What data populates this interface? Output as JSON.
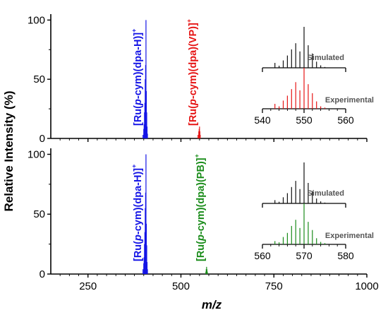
{
  "chart_data": {
    "type": "line",
    "ylabel": "Relative Intensity (%)",
    "xlabel": "m/z",
    "xlim": [
      150,
      1000
    ],
    "x_ticks": [
      250,
      500,
      750,
      1000
    ],
    "grid": false,
    "panels": [
      {
        "ylim": [
          0,
          105
        ],
        "y_ticks": [
          0,
          50,
          100
        ],
        "peaks": [
          {
            "x": 398,
            "y": 3,
            "color": "#1515e6"
          },
          {
            "x": 400,
            "y": 8,
            "color": "#1515e6"
          },
          {
            "x": 401,
            "y": 12,
            "color": "#1515e6"
          },
          {
            "x": 402,
            "y": 22,
            "color": "#1515e6"
          },
          {
            "x": 403,
            "y": 30,
            "color": "#1515e6"
          },
          {
            "x": 404,
            "y": 50,
            "color": "#1515e6"
          },
          {
            "x": 405,
            "y": 62,
            "color": "#1515e6"
          },
          {
            "x": 406,
            "y": 100,
            "color": "#1515e6"
          },
          {
            "x": 407,
            "y": 40,
            "color": "#1515e6"
          },
          {
            "x": 408,
            "y": 22,
            "color": "#1515e6"
          },
          {
            "x": 409,
            "y": 10,
            "color": "#1515e6"
          },
          {
            "x": 410,
            "y": 4,
            "color": "#1515e6"
          },
          {
            "x": 546,
            "y": 3,
            "color": "#e61515"
          },
          {
            "x": 548,
            "y": 6,
            "color": "#e61515"
          },
          {
            "x": 549,
            "y": 8,
            "color": "#e61515"
          },
          {
            "x": 550,
            "y": 10,
            "color": "#e61515"
          },
          {
            "x": 551,
            "y": 6,
            "color": "#e61515"
          },
          {
            "x": 552,
            "y": 3,
            "color": "#e61515"
          }
        ],
        "annotations": [
          {
            "main": "[Ru(",
            "ital": "p",
            "rest": "-cym)(dpa-H)]",
            "sup": "+",
            "color": "#1515e6",
            "x": 399
          },
          {
            "main": "[Ru(",
            "ital": "p",
            "rest": "-cym)(dpa)(VP)]",
            "sup": "+",
            "color": "#e61515",
            "x": 547
          }
        ],
        "inset": {
          "xlim": [
            540,
            560
          ],
          "x_ticks": [
            540,
            550,
            560
          ],
          "simulated_label": "Simulated",
          "experimental_label": "Experimental",
          "simulated": [
            [
              543,
              12
            ],
            [
              544,
              5
            ],
            [
              545,
              18
            ],
            [
              546,
              30
            ],
            [
              547,
              45
            ],
            [
              548,
              60
            ],
            [
              549,
              40
            ],
            [
              550,
              100
            ],
            [
              551,
              55
            ],
            [
              552,
              35
            ],
            [
              553,
              15
            ],
            [
              554,
              6
            ],
            [
              555,
              2
            ]
          ],
          "experimental": [
            [
              543,
              12
            ],
            [
              544,
              6
            ],
            [
              545,
              20
            ],
            [
              546,
              32
            ],
            [
              547,
              48
            ],
            [
              548,
              65
            ],
            [
              549,
              45
            ],
            [
              550,
              100
            ],
            [
              551,
              60
            ],
            [
              552,
              38
            ],
            [
              553,
              18
            ],
            [
              554,
              6
            ],
            [
              555,
              3
            ]
          ],
          "simulated_color": "#111111",
          "experimental_color": "#e61515"
        }
      },
      {
        "ylim": [
          0,
          105
        ],
        "y_ticks": [
          0,
          50,
          100
        ],
        "peaks": [
          {
            "x": 398,
            "y": 4,
            "color": "#1515e6"
          },
          {
            "x": 400,
            "y": 9,
            "color": "#1515e6"
          },
          {
            "x": 401,
            "y": 14,
            "color": "#1515e6"
          },
          {
            "x": 402,
            "y": 25,
            "color": "#1515e6"
          },
          {
            "x": 403,
            "y": 35,
            "color": "#1515e6"
          },
          {
            "x": 404,
            "y": 55,
            "color": "#1515e6"
          },
          {
            "x": 405,
            "y": 68,
            "color": "#1515e6"
          },
          {
            "x": 406,
            "y": 100,
            "color": "#1515e6"
          },
          {
            "x": 407,
            "y": 42,
            "color": "#1515e6"
          },
          {
            "x": 408,
            "y": 24,
            "color": "#1515e6"
          },
          {
            "x": 409,
            "y": 10,
            "color": "#1515e6"
          },
          {
            "x": 410,
            "y": 4,
            "color": "#1515e6"
          },
          {
            "x": 567,
            "y": 2,
            "color": "#1a8c1a"
          },
          {
            "x": 568,
            "y": 4,
            "color": "#1a8c1a"
          },
          {
            "x": 569,
            "y": 6,
            "color": "#1a8c1a"
          },
          {
            "x": 570,
            "y": 4,
            "color": "#1a8c1a"
          },
          {
            "x": 571,
            "y": 2,
            "color": "#1a8c1a"
          }
        ],
        "annotations": [
          {
            "main": "[Ru(",
            "ital": "p",
            "rest": "-cym)(dpa-H)]",
            "sup": "+",
            "color": "#1515e6",
            "x": 399
          },
          {
            "main": "[Ru(",
            "ital": "p",
            "rest": "-cym)(dpa)(PB)]",
            "sup": "+",
            "color": "#1a8c1a",
            "x": 567
          }
        ],
        "inset": {
          "xlim": [
            560,
            580
          ],
          "x_ticks": [
            560,
            570,
            580
          ],
          "simulated_label": "Simulated",
          "experimental_label": "Experimental",
          "simulated": [
            [
              563,
              8
            ],
            [
              564,
              4
            ],
            [
              565,
              15
            ],
            [
              566,
              25
            ],
            [
              567,
              40
            ],
            [
              568,
              55
            ],
            [
              569,
              35
            ],
            [
              570,
              100
            ],
            [
              571,
              50
            ],
            [
              572,
              30
            ],
            [
              573,
              12
            ],
            [
              574,
              5
            ],
            [
              575,
              2
            ]
          ],
          "experimental": [
            [
              563,
              8
            ],
            [
              564,
              5
            ],
            [
              565,
              18
            ],
            [
              566,
              28
            ],
            [
              567,
              45
            ],
            [
              568,
              60
            ],
            [
              569,
              40
            ],
            [
              570,
              100
            ],
            [
              571,
              55
            ],
            [
              572,
              35
            ],
            [
              573,
              15
            ],
            [
              574,
              6
            ],
            [
              575,
              3
            ]
          ],
          "simulated_color": "#111111",
          "experimental_color": "#1a8c1a"
        }
      }
    ]
  }
}
